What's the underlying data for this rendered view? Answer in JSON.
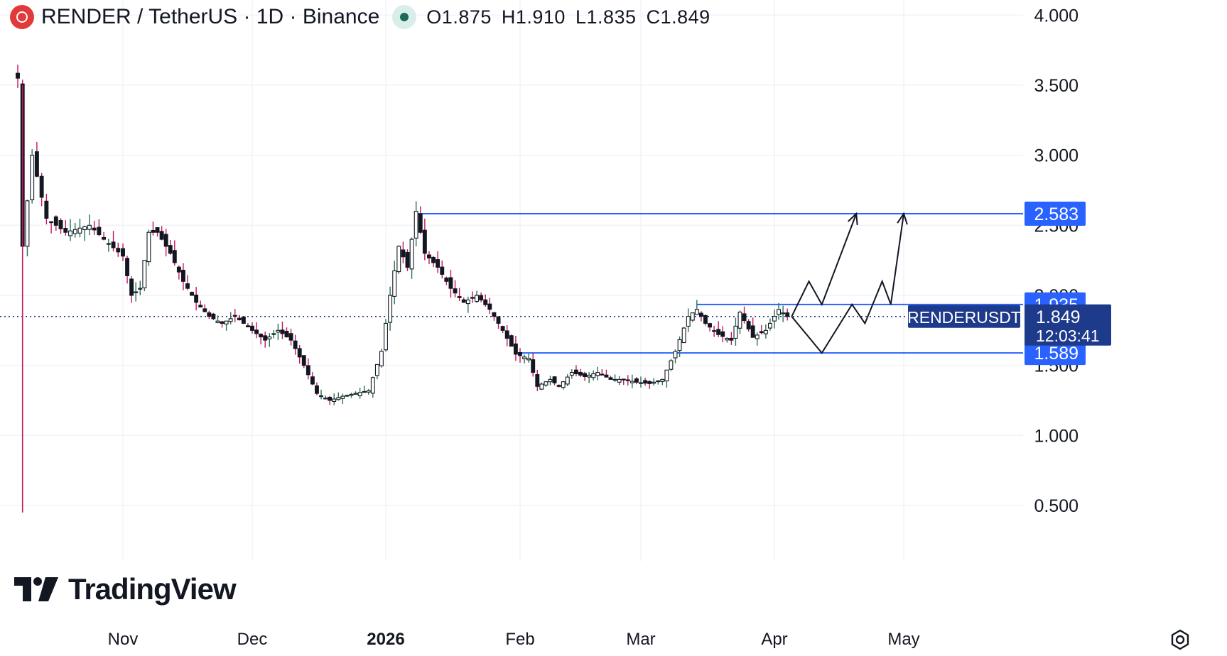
{
  "header": {
    "symbol": "RENDER / TetherUS · 1D · Binance",
    "ohlc": {
      "o_label": "O",
      "o": "1.875",
      "h_label": "H",
      "h": "1.910",
      "l_label": "L",
      "l": "1.835",
      "c_label": "C",
      "c": "1.849"
    },
    "logo_color": "#e23a3a",
    "status_color": "#1b6b58"
  },
  "brand": {
    "name": "TradingView"
  },
  "colors": {
    "up": "#26734d",
    "down": "#c2185b",
    "level": "#2962ff",
    "badge": "#2962ff",
    "symbol_badge": "#1e3a8a"
  },
  "chart_data": {
    "type": "candlestick",
    "title": "RENDER / TetherUS · 1D · Binance",
    "y_axis": {
      "scale": "linear",
      "ylim": [
        0.1,
        4.1
      ],
      "ticks": [
        "4.000",
        "3.500",
        "3.000",
        "2.500",
        "2.000",
        "1.500",
        "1.000",
        "0.500"
      ]
    },
    "x_axis": {
      "ticks": [
        "Nov",
        "Dec",
        "2026",
        "Feb",
        "Mar",
        "Apr",
        "May"
      ]
    },
    "grid": true,
    "ohlc_last": {
      "open": 1.875,
      "high": 1.91,
      "low": 1.835,
      "close": 1.849
    },
    "price_path_close": [
      [
        "Oct 10",
        3.55
      ],
      [
        "Oct 11",
        2.35
      ],
      [
        "Oct 13",
        3.0
      ],
      [
        "Oct 16",
        2.55
      ],
      [
        "Oct 20",
        2.45
      ],
      [
        "Oct 25",
        2.5
      ],
      [
        "Oct 28",
        2.4
      ],
      [
        "Nov 1",
        2.28
      ],
      [
        "Nov 3",
        2.0
      ],
      [
        "Nov 5",
        2.05
      ],
      [
        "Nov 7",
        2.45
      ],
      [
        "Nov 9",
        2.45
      ],
      [
        "Nov 12",
        2.3
      ],
      [
        "Nov 15",
        2.1
      ],
      [
        "Nov 18",
        1.95
      ],
      [
        "Nov 21",
        1.85
      ],
      [
        "Nov 24",
        1.8
      ],
      [
        "Nov 27",
        1.85
      ],
      [
        "Dec 1",
        1.75
      ],
      [
        "Dec 4",
        1.68
      ],
      [
        "Dec 7",
        1.75
      ],
      [
        "Dec 10",
        1.68
      ],
      [
        "Dec 13",
        1.5
      ],
      [
        "Dec 16",
        1.3
      ],
      [
        "Dec 19",
        1.25
      ],
      [
        "Dec 22",
        1.28
      ],
      [
        "Dec 25",
        1.3
      ],
      [
        "Dec 28",
        1.32
      ],
      [
        "Dec 31",
        1.6
      ],
      [
        "Jan 2",
        2.0
      ],
      [
        "Jan 4",
        2.35
      ],
      [
        "Jan 6",
        2.2
      ],
      [
        "Jan 8",
        2.6
      ],
      [
        "Jan 10",
        2.3
      ],
      [
        "Jan 13",
        2.2
      ],
      [
        "Jan 16",
        2.05
      ],
      [
        "Jan 19",
        1.95
      ],
      [
        "Jan 22",
        2.0
      ],
      [
        "Jan 25",
        1.9
      ],
      [
        "Jan 28",
        1.75
      ],
      [
        "Jan 31",
        1.58
      ],
      [
        "Feb 3",
        1.55
      ],
      [
        "Feb 5",
        1.35
      ],
      [
        "Feb 8",
        1.4
      ],
      [
        "Feb 10",
        1.35
      ],
      [
        "Feb 13",
        1.45
      ],
      [
        "Feb 16",
        1.42
      ],
      [
        "Feb 19",
        1.45
      ],
      [
        "Feb 22",
        1.4
      ],
      [
        "Feb 25",
        1.4
      ],
      [
        "Feb 28",
        1.38
      ],
      [
        "Mar 3",
        1.37
      ],
      [
        "Mar 6",
        1.4
      ],
      [
        "Mar 9",
        1.6
      ],
      [
        "Mar 12",
        1.85
      ],
      [
        "Mar 14",
        1.9
      ],
      [
        "Mar 16",
        1.8
      ],
      [
        "Mar 19",
        1.72
      ],
      [
        "Mar 22",
        1.68
      ],
      [
        "Mar 24",
        1.88
      ],
      [
        "Mar 27",
        1.7
      ],
      [
        "Mar 30",
        1.75
      ],
      [
        "Apr 2",
        1.9
      ],
      [
        "Apr 4",
        1.849
      ]
    ],
    "levels": [
      {
        "price": 2.583,
        "label": "2.583"
      },
      {
        "price": 1.935,
        "label": "1.935"
      },
      {
        "price": 1.589,
        "label": "1.589"
      }
    ],
    "last_price": {
      "price": 1.849,
      "label": "1.849",
      "symbol": "RENDERUSDT",
      "countdown": "12:03:41"
    },
    "projection_paths": [
      [
        [
          "Apr 5",
          1.849
        ],
        [
          "Apr 9",
          2.1
        ],
        [
          "Apr 12",
          1.935
        ],
        [
          "Apr 20",
          2.583
        ]
      ],
      [
        [
          "Apr 5",
          1.849
        ],
        [
          "Apr 12",
          1.589
        ],
        [
          "Apr 19",
          1.935
        ],
        [
          "Apr 22",
          1.8
        ],
        [
          "Apr 26",
          2.1
        ],
        [
          "Apr 28",
          1.935
        ],
        [
          "May 1",
          2.583
        ]
      ]
    ]
  }
}
